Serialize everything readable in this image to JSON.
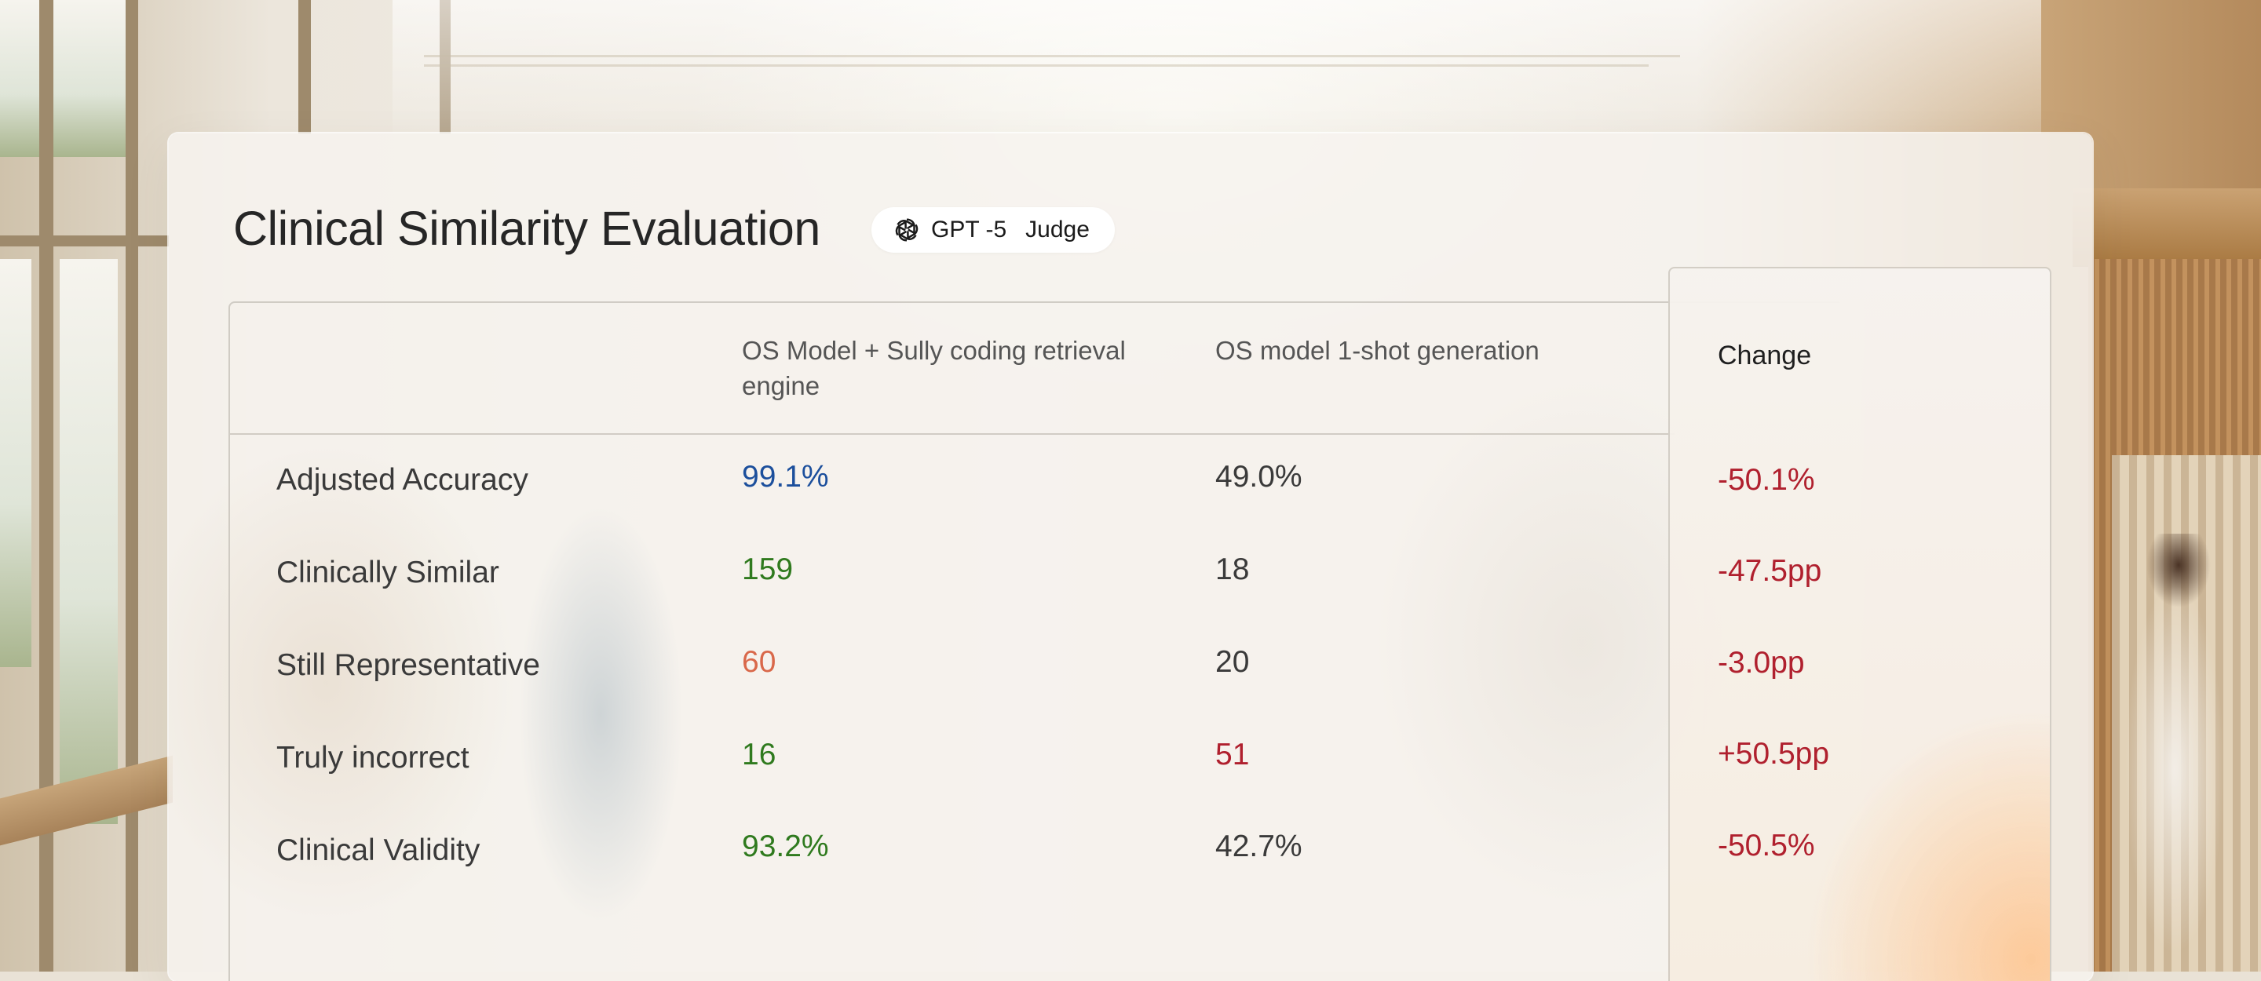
{
  "title": "Clinical Similarity Evaluation",
  "badge": {
    "icon": "openai-logo-icon",
    "model": "GPT -5",
    "label": "Judge"
  },
  "columns": {
    "retrieval": "OS Model + Sully coding retrieval engine",
    "oneshot": "OS model 1-shot generation",
    "change": "Change"
  },
  "colors": {
    "blue": "#1c4f9c",
    "green": "#2f7a1e",
    "orange": "#d9684a",
    "red": "#b0202e",
    "neutral": "#3a3a3a"
  },
  "rows": [
    {
      "label": "Adjusted Accuracy",
      "retrieval": "99.1%",
      "retrieval_color": "blue",
      "oneshot": "49.0%",
      "oneshot_color": "neutral",
      "change": "-50.1%"
    },
    {
      "label": "Clinically Similar",
      "retrieval": "159",
      "retrieval_color": "green",
      "oneshot": "18",
      "oneshot_color": "neutral",
      "change": "-47.5pp"
    },
    {
      "label": "Still Representative",
      "retrieval": "60",
      "retrieval_color": "orange",
      "oneshot": "20",
      "oneshot_color": "neutral",
      "change": "-3.0pp"
    },
    {
      "label": "Truly incorrect",
      "retrieval": "16",
      "retrieval_color": "green",
      "oneshot": "51",
      "oneshot_color": "red",
      "change": "+50.5pp"
    },
    {
      "label": "Clinical Validity",
      "retrieval": "93.2%",
      "retrieval_color": "green",
      "oneshot": "42.7%",
      "oneshot_color": "neutral",
      "change": "-50.5%"
    }
  ]
}
